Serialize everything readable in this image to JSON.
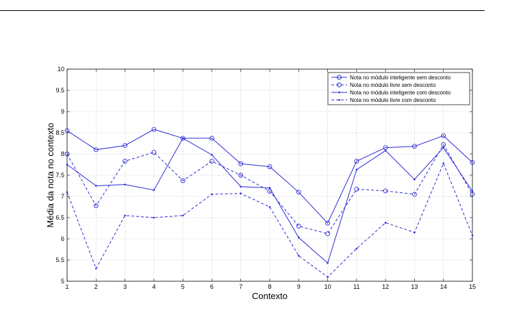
{
  "chart_data": {
    "type": "line",
    "xlabel": "Contexto",
    "ylabel": "Média da nota no contexto",
    "xlim": [
      1,
      15
    ],
    "ylim": [
      5,
      10
    ],
    "x_ticks": [
      "1",
      "2",
      "3",
      "4",
      "5",
      "6",
      "7",
      "8",
      "9",
      "10",
      "11",
      "12",
      "13",
      "14",
      "15"
    ],
    "y_ticks": [
      "5",
      "5.5",
      "6",
      "6.5",
      "7",
      "7.5",
      "8",
      "8.5",
      "9",
      "9.5",
      "10"
    ],
    "grid": true,
    "legend_position": "top-right",
    "line_color": "#2b2bd6",
    "x": [
      1,
      2,
      3,
      4,
      5,
      6,
      7,
      8,
      9,
      10,
      11,
      12,
      13,
      14,
      15
    ],
    "series": [
      {
        "name": "Nota no módulo inteligente sem desconto",
        "line": "solid",
        "marker": "circle",
        "values": [
          8.55,
          8.1,
          8.2,
          8.58,
          8.37,
          8.37,
          7.77,
          7.7,
          7.1,
          6.37,
          7.83,
          8.15,
          8.18,
          8.43,
          7.8
        ]
      },
      {
        "name": "Nota no módulo livre sem desconto",
        "line": "dashed",
        "marker": "circle",
        "values": [
          8.0,
          6.78,
          7.83,
          8.04,
          7.37,
          7.83,
          7.5,
          7.12,
          6.3,
          6.12,
          7.17,
          7.13,
          7.05,
          8.22,
          7.05
        ]
      },
      {
        "name": "Nota no módulo inteligente com desconto",
        "line": "solid",
        "marker": "dot",
        "values": [
          7.75,
          7.25,
          7.28,
          7.15,
          8.37,
          7.98,
          7.23,
          7.2,
          6.03,
          5.43,
          7.63,
          8.08,
          7.4,
          8.15,
          7.12
        ]
      },
      {
        "name": "Nota no módulo livre com desconto",
        "line": "dashed",
        "marker": "dot",
        "values": [
          7.1,
          5.3,
          6.55,
          6.5,
          6.55,
          7.05,
          7.07,
          6.75,
          5.6,
          5.1,
          5.77,
          6.38,
          6.15,
          7.78,
          6.08
        ]
      }
    ]
  }
}
